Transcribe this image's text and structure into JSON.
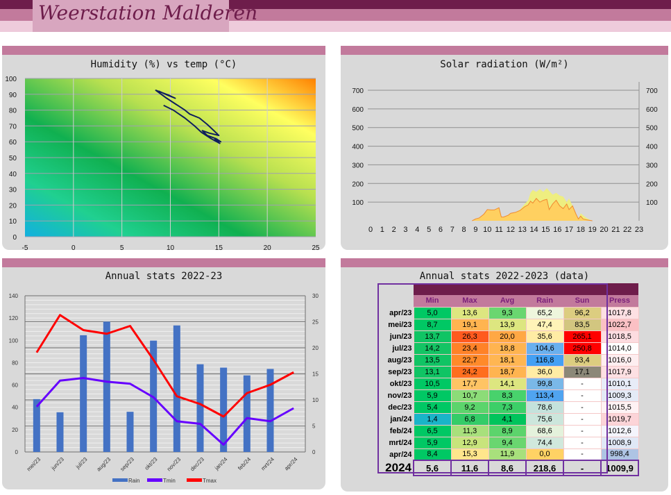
{
  "header": {
    "title": "Weerstation Malderen"
  },
  "humidity_chart": {
    "title": "Humidity (%) vs temp (°C)",
    "xlim": [
      -5,
      25
    ],
    "ylim": [
      0,
      100
    ],
    "xticks": [
      "-5",
      "0",
      "5",
      "10",
      "15",
      "20",
      "25"
    ],
    "yticks": [
      "0",
      "10",
      "20",
      "30",
      "40",
      "50",
      "60",
      "70",
      "80",
      "90",
      "100"
    ],
    "line_color": "#0f1f5c",
    "points": [
      [
        8.8,
        92
      ],
      [
        9.7,
        89.5
      ],
      [
        10.5,
        87.5
      ],
      [
        9.8,
        89.5
      ],
      [
        8.5,
        92.5
      ],
      [
        9.5,
        88
      ],
      [
        10.5,
        84
      ],
      [
        11.5,
        80
      ],
      [
        12,
        77.5
      ],
      [
        13,
        75
      ],
      [
        13.8,
        71
      ],
      [
        14.5,
        67
      ],
      [
        15,
        64
      ],
      [
        14,
        65.5
      ],
      [
        13.3,
        67
      ],
      [
        13.8,
        64
      ],
      [
        14.7,
        62
      ],
      [
        15.2,
        60
      ],
      [
        14.6,
        61.5
      ],
      [
        15.1,
        59
      ],
      [
        14.2,
        62
      ],
      [
        13.2,
        66
      ],
      [
        12.5,
        70
      ],
      [
        11.5,
        75
      ],
      [
        10.3,
        80
      ],
      [
        9.3,
        83
      ]
    ]
  },
  "solar_chart": {
    "title": "Solar radiation (W/m²)",
    "xlim": [
      0,
      23
    ],
    "ylim": [
      0,
      750
    ],
    "xticks": [
      "0",
      "1",
      "2",
      "3",
      "4",
      "5",
      "6",
      "7",
      "8",
      "9",
      "10",
      "11",
      "12",
      "13",
      "14",
      "15",
      "16",
      "17",
      "18",
      "19",
      "20",
      "21",
      "22",
      "23"
    ],
    "yticks": [
      "100",
      "200",
      "300",
      "400",
      "500",
      "600",
      "700"
    ],
    "colors": {
      "max": "#eeee80",
      "avg": "#ffd060",
      "line": "#f08a30"
    },
    "x": [
      8.7,
      9,
      9.3,
      9.7,
      10,
      10.3,
      10.6,
      11,
      11.2,
      11.4,
      11.8,
      12,
      12.4,
      12.8,
      13.2,
      13.5,
      13.7,
      13.9,
      14.2,
      14.5,
      14.8,
      15.1,
      15.3,
      15.6,
      15.9,
      16.2,
      16.5,
      16.8,
      17,
      17.3,
      17.6,
      17.8,
      18,
      18.2,
      18.5,
      18.8,
      19
    ],
    "max": [
      0,
      10,
      15,
      35,
      60,
      58,
      58,
      70,
      20,
      20,
      30,
      40,
      45,
      60,
      90,
      110,
      150,
      165,
      155,
      170,
      155,
      175,
      160,
      140,
      150,
      135,
      130,
      100,
      120,
      80,
      40,
      10,
      40,
      30,
      15,
      5,
      0
    ],
    "avg": [
      0,
      10,
      15,
      35,
      60,
      58,
      58,
      70,
      20,
      20,
      30,
      40,
      45,
      55,
      75,
      85,
      105,
      95,
      120,
      100,
      110,
      115,
      60,
      90,
      110,
      80,
      65,
      90,
      60,
      80,
      35,
      10,
      25,
      10,
      5,
      2,
      0
    ]
  },
  "annual_chart": {
    "title": "Annual stats 2022-23",
    "categories": [
      "mei/23",
      "jun/23",
      "jul/23",
      "aug/23",
      "sep/23",
      "okt/23",
      "nov/23",
      "dec/23",
      "jan/24",
      "feb/24",
      "mrt/24",
      "apr/24"
    ],
    "ylim_left": [
      0,
      140
    ],
    "ylim_right": [
      0,
      30
    ],
    "yticks_left": [
      "0",
      "20",
      "40",
      "60",
      "80",
      "100",
      "120",
      "140"
    ],
    "yticks_right": [
      "0",
      "5",
      "10",
      "15",
      "20",
      "25",
      "30"
    ],
    "series": [
      {
        "name": "Rain",
        "type": "bar",
        "axis": "left",
        "color": "#4472c4",
        "values": [
          47.4,
          35.6,
          104.6,
          116.8,
          36.0,
          99.8,
          113.4,
          78.6,
          75.6,
          68.6,
          74.4,
          0.0
        ]
      },
      {
        "name": "Tmin",
        "type": "line",
        "axis": "right",
        "color": "#6600ff",
        "values": [
          8.7,
          13.7,
          14.2,
          13.5,
          13.1,
          10.5,
          5.9,
          5.4,
          1.4,
          6.5,
          5.9,
          8.4
        ]
      },
      {
        "name": "Tmax",
        "type": "line",
        "axis": "right",
        "color": "#ff0000",
        "values": [
          19.1,
          26.3,
          23.4,
          22.7,
          24.2,
          17.7,
          10.7,
          9.2,
          6.8,
          11.3,
          12.9,
          15.3
        ]
      }
    ]
  },
  "stats_table": {
    "title": "Annual stats 2022-2023 (data)",
    "headers": [
      "Min",
      "Max",
      "Avg",
      "Rain",
      "Sun",
      "Press"
    ],
    "rows": [
      {
        "label": "apr/23",
        "cells": [
          [
            "5,0",
            "#00c864"
          ],
          [
            "13,6",
            "#dde680"
          ],
          [
            "9,3",
            "#6ad670"
          ],
          [
            "65,2",
            "#eef6dc"
          ],
          [
            "96,2",
            "#dccd80"
          ],
          [
            "1017,8",
            "#fde0e3"
          ]
        ]
      },
      {
        "label": "mei/23",
        "cells": [
          [
            "8,7",
            "#00c864"
          ],
          [
            "19,1",
            "#ffb450"
          ],
          [
            "13,9",
            "#dde680"
          ],
          [
            "47,4",
            "#fff4b8"
          ],
          [
            "83,5",
            "#d2c680"
          ],
          [
            "1022,7",
            "#fbc0c4"
          ]
        ]
      },
      {
        "label": "jun/23",
        "cells": [
          [
            "13,7",
            "#10c464"
          ],
          [
            "26,3",
            "#ff5a1e"
          ],
          [
            "20,0",
            "#ffa844"
          ],
          [
            "35,6",
            "#ffeca4"
          ],
          [
            "265,1",
            "#ff0000"
          ],
          [
            "1018,5",
            "#fddce0"
          ]
        ]
      },
      {
        "label": "jul/23",
        "cells": [
          [
            "14,2",
            "#14c464"
          ],
          [
            "23,4",
            "#ff8228"
          ],
          [
            "18,8",
            "#ffb450"
          ],
          [
            "104,6",
            "#6ab0ee"
          ],
          [
            "250,8",
            "#ff0000"
          ],
          [
            "1014,0",
            "#ffffff"
          ]
        ]
      },
      {
        "label": "aug/23",
        "cells": [
          [
            "13,5",
            "#10c464"
          ],
          [
            "22,7",
            "#ff8a2a"
          ],
          [
            "18,1",
            "#ffb652"
          ],
          [
            "116,8",
            "#44a0f4"
          ],
          [
            "93,4",
            "#dccd80"
          ],
          [
            "1016,0",
            "#feeef0"
          ]
        ]
      },
      {
        "label": "sep/23",
        "cells": [
          [
            "13,1",
            "#10c464"
          ],
          [
            "24,2",
            "#ff6e1e"
          ],
          [
            "18,7",
            "#ffb450"
          ],
          [
            "36,0",
            "#ffeca4"
          ],
          [
            "17,1",
            "#8c8878"
          ],
          [
            "1017,9",
            "#fde0e3"
          ]
        ]
      },
      {
        "label": "okt/23",
        "cells": [
          [
            "10,5",
            "#00c864"
          ],
          [
            "17,7",
            "#ffc464"
          ],
          [
            "14,1",
            "#dde680"
          ],
          [
            "99,8",
            "#7ab8e8"
          ],
          [
            "-",
            "#ffffff"
          ],
          [
            "1010,1",
            "#e8ecf8"
          ]
        ]
      },
      {
        "label": "nov/23",
        "cells": [
          [
            "5,9",
            "#00c864"
          ],
          [
            "10,7",
            "#8cdc78"
          ],
          [
            "8,3",
            "#48d26c"
          ],
          [
            "113,4",
            "#50a4f0"
          ],
          [
            "-",
            "#ffffff"
          ],
          [
            "1009,3",
            "#e4eaf6"
          ]
        ]
      },
      {
        "label": "dec/23",
        "cells": [
          [
            "5,4",
            "#00c864"
          ],
          [
            "9,2",
            "#5cd46c"
          ],
          [
            "7,3",
            "#3ccf68"
          ],
          [
            "78,6",
            "#c4e2dc"
          ],
          [
            "-",
            "#ffffff"
          ],
          [
            "1015,5",
            "#fef2f4"
          ]
        ]
      },
      {
        "label": "jan/24",
        "cells": [
          [
            "1,4",
            "#1ab4c8"
          ],
          [
            "6,8",
            "#34cc68"
          ],
          [
            "4,1",
            "#00c45c"
          ],
          [
            "75,6",
            "#cce6dc"
          ],
          [
            "-",
            "#ffffff"
          ],
          [
            "1019,7",
            "#fcd4d8"
          ]
        ]
      },
      {
        "label": "feb/24",
        "cells": [
          [
            "6,5",
            "#00c864"
          ],
          [
            "11,3",
            "#a8e07c"
          ],
          [
            "8,9",
            "#5cd46c"
          ],
          [
            "68,6",
            "#e4f2dc"
          ],
          [
            "-",
            "#ffffff"
          ],
          [
            "1012,6",
            "#f4f4fc"
          ]
        ]
      },
      {
        "label": "mrt/24",
        "cells": [
          [
            "5,9",
            "#00c864"
          ],
          [
            "12,9",
            "#c8e47c"
          ],
          [
            "9,4",
            "#6ad670"
          ],
          [
            "74,4",
            "#d0e8dc"
          ],
          [
            "-",
            "#ffffff"
          ],
          [
            "1008,9",
            "#e0e8f6"
          ]
        ]
      },
      {
        "label": "apr/24",
        "cells": [
          [
            "8,4",
            "#00c864"
          ],
          [
            "15,3",
            "#ffe68c"
          ],
          [
            "11,9",
            "#a8e07c"
          ],
          [
            "0,0",
            "#ffd264"
          ],
          [
            "-",
            "#ffffff"
          ],
          [
            "998,4",
            "#aec4e4"
          ]
        ]
      }
    ],
    "total": {
      "label": "2024",
      "cells": [
        "5,6",
        "11,6",
        "8,6",
        "218,6",
        "-",
        "1009,9"
      ]
    }
  }
}
